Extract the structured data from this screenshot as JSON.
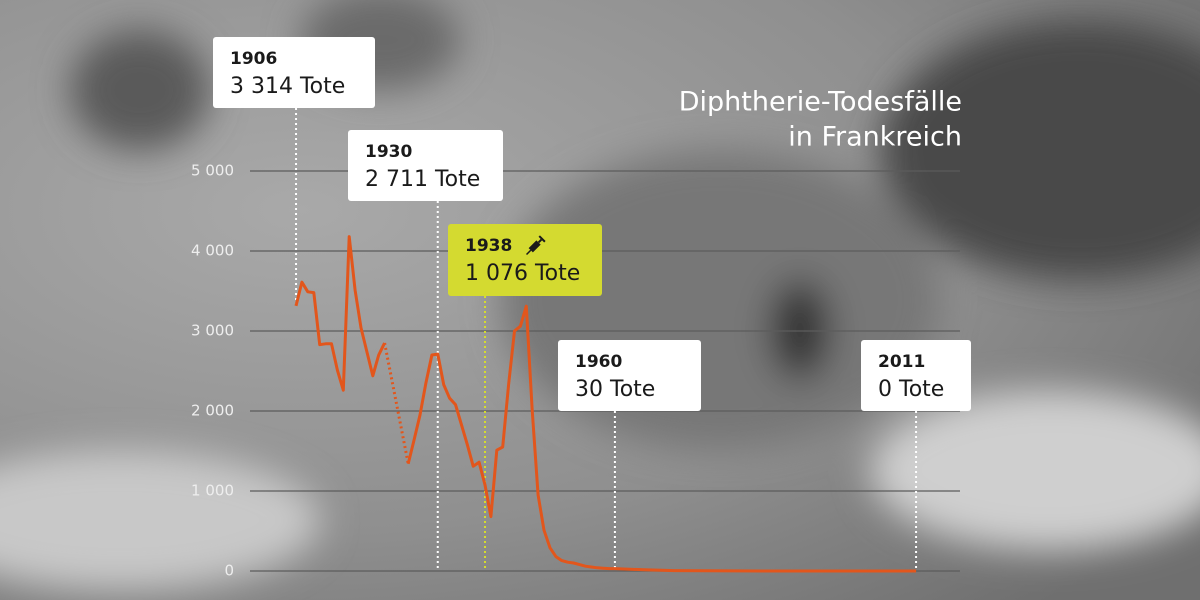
{
  "chart_data": {
    "type": "line",
    "title_lines": [
      "Diphtherie-Todesfälle",
      "in Frankreich"
    ],
    "x": [
      1906,
      1907,
      1908,
      1909,
      1910,
      1911,
      1912,
      1913,
      1914,
      1915,
      1916,
      1917,
      1918,
      1919,
      1920,
      1921,
      1922,
      1923,
      1924,
      1925,
      1926,
      1927,
      1928,
      1929,
      1930,
      1931,
      1932,
      1933,
      1934,
      1935,
      1936,
      1937,
      1938,
      1939,
      1940,
      1941,
      1942,
      1943,
      1944,
      1945,
      1946,
      1947,
      1948,
      1949,
      1950,
      1951,
      1952,
      1953,
      1954,
      1955,
      1956,
      1957,
      1958,
      1959,
      1960,
      1965,
      1970,
      1980,
      1990,
      2000,
      2011
    ],
    "series": [
      {
        "name": "Todesfälle",
        "color": "#e2561c",
        "values": [
          3314,
          3610,
          3490,
          3480,
          2830,
          2840,
          2840,
          2510,
          2260,
          4180,
          3510,
          3040,
          2740,
          2440,
          2700,
          2850,
          null,
          null,
          null,
          1340,
          1640,
          1950,
          2350,
          2700,
          2711,
          2330,
          2160,
          2080,
          1830,
          1580,
          1310,
          1360,
          1076,
          680,
          1510,
          1550,
          2330,
          3000,
          3060,
          3310,
          2010,
          950,
          510,
          290,
          180,
          130,
          110,
          100,
          80,
          60,
          50,
          40,
          35,
          30,
          30,
          15,
          5,
          1,
          0,
          0,
          0
        ]
      }
    ],
    "xlim": [
      1898,
      2019
    ],
    "ylim": [
      0,
      5000
    ],
    "yticks": [
      0,
      {
        "value": 1000,
        "label": "1 000"
      },
      {
        "value": 2000,
        "label": "2 000"
      },
      {
        "value": 3000,
        "label": "3 000"
      },
      {
        "value": 4000,
        "label": "4 000"
      },
      {
        "value": 5000,
        "label": "5 000"
      }
    ],
    "grid": true,
    "annotations": [
      {
        "x": 1906,
        "value": 3314,
        "year": "1906",
        "text": "3 314 Tote",
        "highlight": false
      },
      {
        "x": 1930,
        "value": 2711,
        "year": "1930",
        "text": "2 711 Tote",
        "highlight": false
      },
      {
        "x": 1938,
        "value": 1076,
        "year": "1938",
        "text": "1 076 Tote",
        "highlight": true
      },
      {
        "x": 1960,
        "value": 30,
        "year": "1960",
        "text": "30 Tote",
        "highlight": false
      },
      {
        "x": 2011,
        "value": 0,
        "year": "2011",
        "text": "0 Tote",
        "highlight": false
      }
    ]
  }
}
